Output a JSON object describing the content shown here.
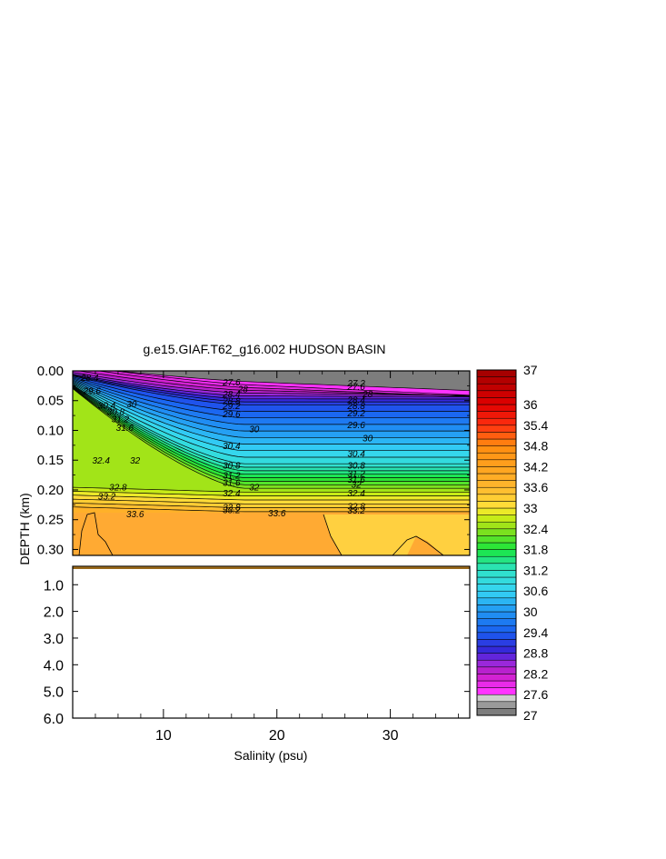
{
  "chart_data": {
    "type": "contour",
    "title": "g.e15.GIAF.T62_g16.002 HUDSON BASIN",
    "xlabel": "Salinity (psu)",
    "ylabel": "DEPTH (km)",
    "x_ticks": [
      "10",
      "20",
      "30"
    ],
    "x_tick_values": [
      10,
      20,
      30
    ],
    "xlim": [
      2,
      37
    ],
    "upper_panel": {
      "ylim": [
        0.0,
        0.31
      ],
      "y_ticks": [
        "0.00",
        "0.05",
        "0.10",
        "0.15",
        "0.20",
        "0.25",
        "0.30"
      ],
      "y_tick_values": [
        0.0,
        0.05,
        0.1,
        0.15,
        0.2,
        0.25,
        0.3
      ]
    },
    "lower_panel": {
      "ylim": [
        0.31,
        6.0
      ],
      "y_ticks": [
        "1.0",
        "2.0",
        "3.0",
        "4.0",
        "5.0",
        "6.0"
      ],
      "y_tick_values": [
        1.0,
        2.0,
        3.0,
        4.0,
        5.0,
        6.0
      ]
    },
    "contour_levels": [
      27.6,
      27.8,
      28,
      28.2,
      28.4,
      28.6,
      28.8,
      29,
      29.2,
      29.4,
      29.6,
      29.8,
      30,
      30.2,
      30.4,
      30.6,
      30.8,
      31,
      31.2,
      31.4,
      31.6,
      31.8,
      32,
      32.2,
      32.4,
      32.6,
      32.8,
      33,
      33.2,
      33.4,
      33.6
    ],
    "contour_labels": [
      {
        "text": "27.6",
        "x": 16.0,
        "y": 0.018
      },
      {
        "text": "28",
        "x": 17.0,
        "y": 0.03
      },
      {
        "text": "28.4",
        "x": 16.0,
        "y": 0.038
      },
      {
        "text": "28.8",
        "x": 16.0,
        "y": 0.05
      },
      {
        "text": "29.2",
        "x": 16.0,
        "y": 0.058
      },
      {
        "text": "29.6",
        "x": 16.0,
        "y": 0.072
      },
      {
        "text": "30",
        "x": 18.0,
        "y": 0.097
      },
      {
        "text": "30.4",
        "x": 16.0,
        "y": 0.125
      },
      {
        "text": "30.8",
        "x": 16.0,
        "y": 0.158
      },
      {
        "text": "31.2",
        "x": 16.0,
        "y": 0.175
      },
      {
        "text": "31.6",
        "x": 16.0,
        "y": 0.187
      },
      {
        "text": "32",
        "x": 18.0,
        "y": 0.195
      },
      {
        "text": "32.4",
        "x": 16.0,
        "y": 0.205
      },
      {
        "text": "32.8",
        "x": 16.0,
        "y": 0.228
      },
      {
        "text": "33.2",
        "x": 16.0,
        "y": 0.233
      },
      {
        "text": "33.6",
        "x": 20.0,
        "y": 0.238
      },
      {
        "text": "27.2",
        "x": 27.0,
        "y": 0.02
      },
      {
        "text": "27.6",
        "x": 27.0,
        "y": 0.026
      },
      {
        "text": "28",
        "x": 28.0,
        "y": 0.038
      },
      {
        "text": "28.4",
        "x": 27.0,
        "y": 0.048
      },
      {
        "text": "28.8",
        "x": 27.0,
        "y": 0.058
      },
      {
        "text": "29.2",
        "x": 27.0,
        "y": 0.07
      },
      {
        "text": "29.6",
        "x": 27.0,
        "y": 0.09
      },
      {
        "text": "30",
        "x": 28.0,
        "y": 0.112
      },
      {
        "text": "30.4",
        "x": 27.0,
        "y": 0.138
      },
      {
        "text": "30.8",
        "x": 27.0,
        "y": 0.158
      },
      {
        "text": "31.2",
        "x": 27.0,
        "y": 0.172
      },
      {
        "text": "31.6",
        "x": 27.0,
        "y": 0.182
      },
      {
        "text": "32",
        "x": 27.0,
        "y": 0.19
      },
      {
        "text": "32.4",
        "x": 27.0,
        "y": 0.205
      },
      {
        "text": "32.8",
        "x": 27.0,
        "y": 0.227
      },
      {
        "text": "33.2",
        "x": 27.0,
        "y": 0.234
      },
      {
        "text": "28.4",
        "x": 3.5,
        "y": 0.011
      },
      {
        "text": "29.6",
        "x": 3.7,
        "y": 0.033
      },
      {
        "text": "30",
        "x": 7.2,
        "y": 0.055
      },
      {
        "text": "30.4",
        "x": 5.0,
        "y": 0.057
      },
      {
        "text": "30.8",
        "x": 5.8,
        "y": 0.068
      },
      {
        "text": "31.2",
        "x": 6.2,
        "y": 0.08
      },
      {
        "text": "31.6",
        "x": 6.6,
        "y": 0.095
      },
      {
        "text": "32",
        "x": 7.5,
        "y": 0.15
      },
      {
        "text": "32.4",
        "x": 4.5,
        "y": 0.15
      },
      {
        "text": "32.8",
        "x": 6.0,
        "y": 0.195
      },
      {
        "text": "33.2",
        "x": 5.0,
        "y": 0.21
      },
      {
        "text": "33.6",
        "x": 7.5,
        "y": 0.24
      }
    ],
    "colorbar": {
      "labels": [
        "37",
        "36",
        "35.4",
        "34.8",
        "34.2",
        "33.6",
        "33",
        "32.4",
        "31.8",
        "31.2",
        "30.6",
        "30",
        "29.4",
        "28.8",
        "28.2",
        "27.6",
        "27"
      ],
      "min": 27,
      "max": 37
    },
    "grid": false,
    "legend": "right colorbar"
  }
}
